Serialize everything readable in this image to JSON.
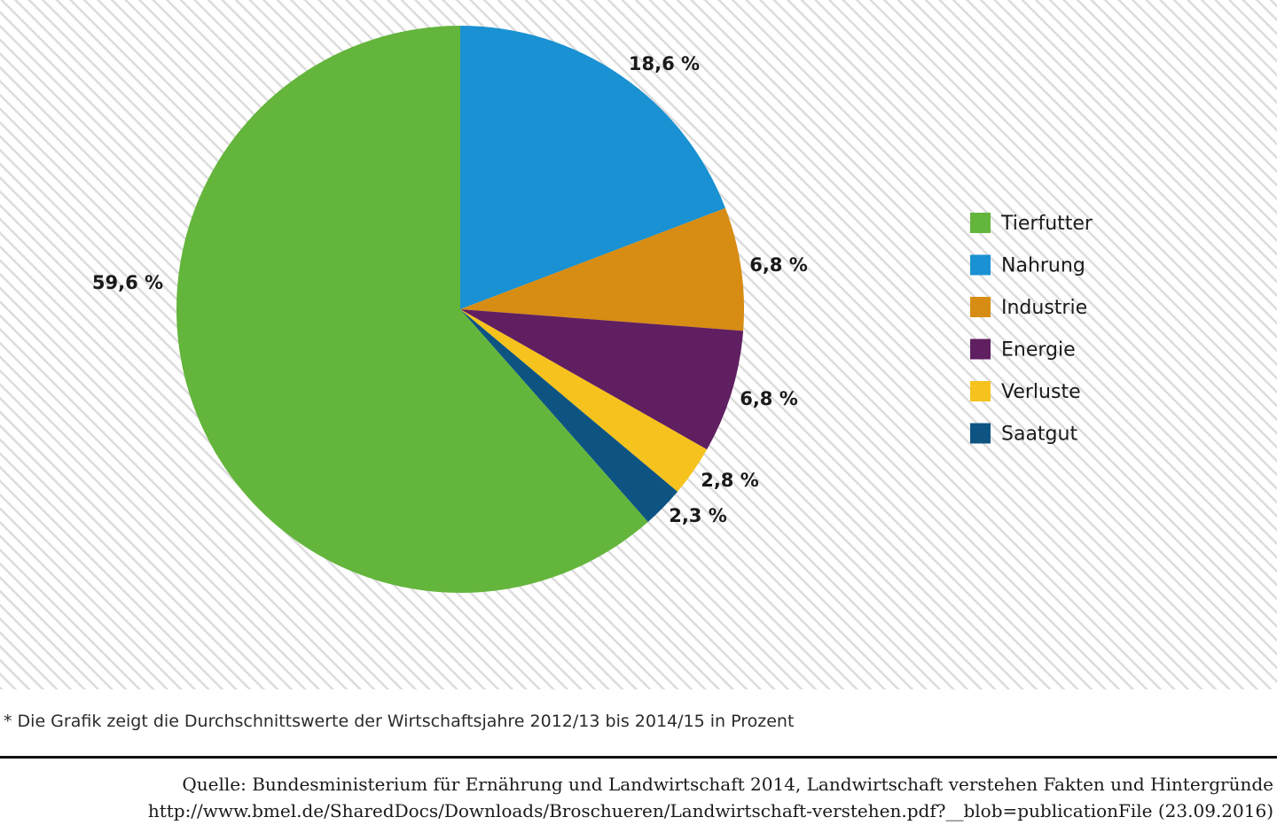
{
  "chart_data": {
    "type": "pie",
    "slices": [
      {
        "label": "Nahrung",
        "value": 18.6,
        "display": "18,6 %",
        "color": "#1991d2"
      },
      {
        "label": "Industrie",
        "value": 6.8,
        "display": "6,8 %",
        "color": "#d78c13"
      },
      {
        "label": "Energie",
        "value": 6.8,
        "display": "6,8 %",
        "color": "#601f60"
      },
      {
        "label": "Verluste",
        "value": 2.8,
        "display": "2,8 %",
        "color": "#f6c21d"
      },
      {
        "label": "Saatgut",
        "value": 2.3,
        "display": "2,3 %",
        "color": "#0d5482"
      },
      {
        "label": "Tierfutter",
        "value": 59.6,
        "display": "59,6 %",
        "color": "#64b53c"
      }
    ],
    "legend": [
      "Tierfutter",
      "Nahrung",
      "Industrie",
      "Energie",
      "Verluste",
      "Saatgut"
    ],
    "legend_position": "right",
    "background": "hatched light gray"
  },
  "footnote": "* Die Grafik zeigt die Durchschnittswerte der Wirtschaftsjahre 2012/13 bis 2014/15 in Prozent",
  "source": {
    "line1": "Quelle: Bundesministerium für Ernährung und Landwirtschaft 2014, Landwirtschaft verstehen Fakten und Hintergründe",
    "line2": "http://www.bmel.de/SharedDocs/Downloads/Broschueren/Landwirtschaft-verstehen.pdf?__blob=publicationFile (23.09.2016)"
  }
}
